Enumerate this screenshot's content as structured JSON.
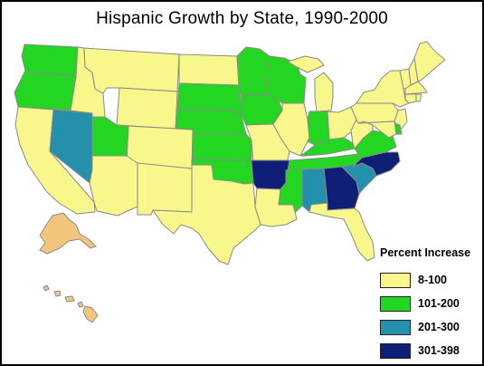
{
  "title": "Hispanic Growth by State, 1990-2000",
  "colors": {
    "cat1": "#f7f78c",
    "cat2": "#22d622",
    "cat3": "#2590ac",
    "cat4": "#0f1f78",
    "other": "#f2c57c",
    "border": "#8a8a8a",
    "water": "#ffffff"
  },
  "legend": {
    "title": "Percent Increase",
    "items": [
      {
        "label": "8-100",
        "color": "#f7f78c"
      },
      {
        "label": "101-200",
        "color": "#22d622"
      },
      {
        "label": "201-300",
        "color": "#2590ac"
      },
      {
        "label": "301-398",
        "color": "#0f1f78"
      }
    ]
  },
  "states": {
    "WA": "cat2",
    "OR": "cat2",
    "CA": "cat1",
    "NV": "cat3",
    "ID": "cat1",
    "MT": "cat1",
    "WY": "cat1",
    "UT": "cat2",
    "AZ": "cat1",
    "CO": "cat1",
    "NM": "cat1",
    "ND": "cat1",
    "SD": "cat2",
    "NE": "cat2",
    "KS": "cat2",
    "OK": "cat2",
    "TX": "cat1",
    "MN": "cat2",
    "IA": "cat2",
    "MO": "cat1",
    "AR": "cat4",
    "LA": "cat1",
    "WI": "cat2",
    "IL": "cat1",
    "MI": "cat1",
    "IN": "cat2",
    "OH": "cat1",
    "KY": "cat2",
    "TN": "cat2",
    "MS": "cat2",
    "AL": "cat3",
    "GA": "cat4",
    "FL": "cat1",
    "SC": "cat3",
    "NC": "cat4",
    "VA": "cat2",
    "WV": "cat1",
    "PA": "cat1",
    "NY": "cat1",
    "VT": "cat1",
    "NH": "cat1",
    "ME": "cat1",
    "MA": "cat1",
    "RI": "cat1",
    "CT": "cat1",
    "NJ": "cat1",
    "DE": "cat2",
    "MD": "cat1",
    "AK": "other",
    "HI": "other"
  }
}
